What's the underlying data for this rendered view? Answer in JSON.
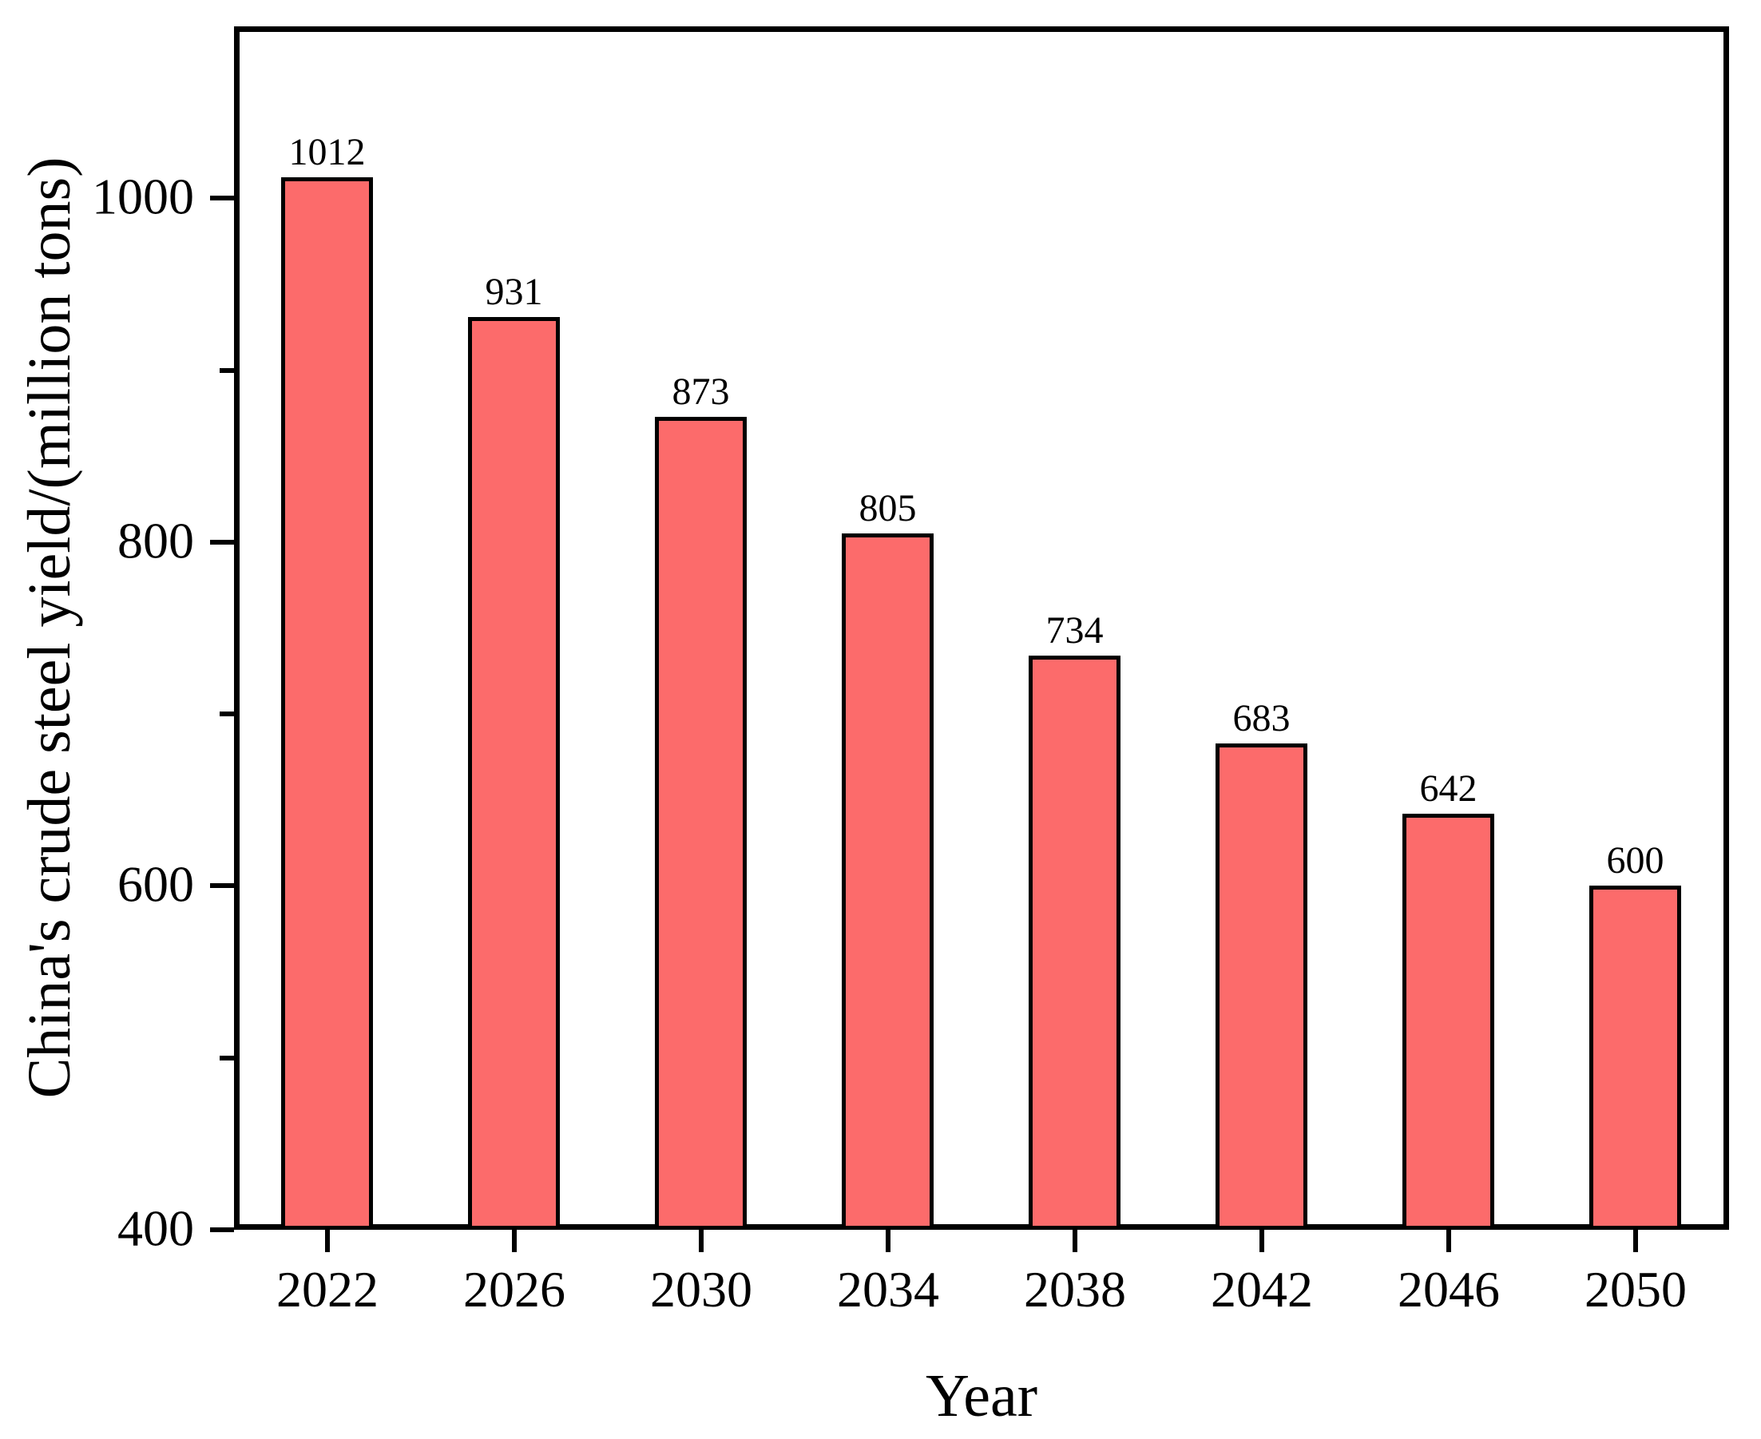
{
  "chart_data": {
    "type": "bar",
    "categories": [
      "2022",
      "2026",
      "2030",
      "2034",
      "2038",
      "2042",
      "2046",
      "2050"
    ],
    "values": [
      1012,
      931,
      873,
      805,
      734,
      683,
      642,
      600
    ],
    "bar_value_labels": [
      "1012",
      "931",
      "873",
      "805",
      "734",
      "683",
      "642",
      "600"
    ],
    "title": "",
    "xlabel": "Year",
    "ylabel": "China's crude steel yield/(million tons)",
    "ylim": [
      400,
      1100
    ],
    "yticks_major": [
      400,
      600,
      800,
      1000
    ],
    "yticks_minor": [
      500,
      700,
      900
    ],
    "ytick_labels": [
      "400",
      "600",
      "800",
      "1000"
    ],
    "bar_color": "#FC6B6B",
    "bar_edge_color": "#000000",
    "axis_color": "#000000",
    "background_color": "#FFFFFF",
    "grid": false,
    "legend": null,
    "bar_width_fraction": 0.49
  }
}
